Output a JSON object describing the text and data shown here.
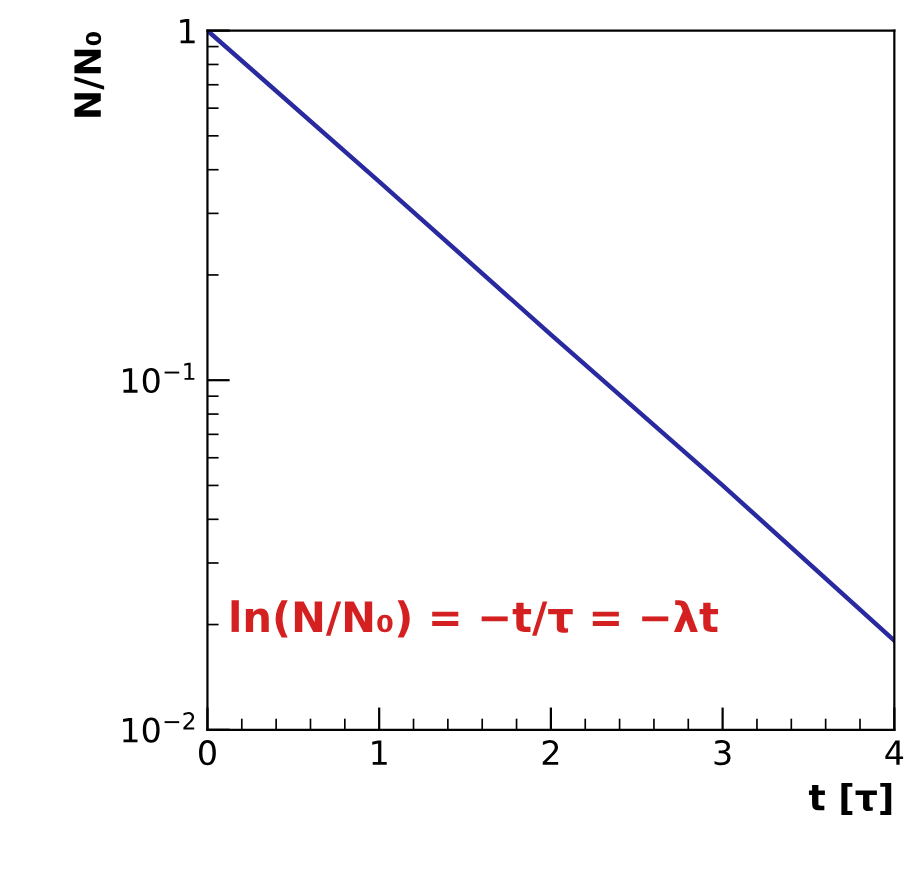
{
  "chart_data": {
    "type": "line",
    "xlabel": "t [τ]",
    "ylabel": "N/N₀",
    "x": [
      0,
      1,
      2,
      3,
      4
    ],
    "series": [
      {
        "color": "#2a2aa0",
        "values": [
          1,
          0.37,
          0.135,
          0.05,
          0.018
        ]
      }
    ],
    "log": "y",
    "xlim": [
      0,
      4
    ],
    "ylim": [
      0.01,
      1
    ],
    "xticks": [
      0,
      1,
      2,
      3,
      4
    ],
    "yticks": [
      {
        "value": 0.01,
        "label": "10$^{−2}$"
      },
      {
        "value": 0.1,
        "label": "10$^{−1}$"
      },
      1
    ],
    "grid": false,
    "legend": false,
    "marker": "none",
    "line_style": "solid",
    "annotations": [
      "ln(N/N₀) = −t/τ = −λt"
    ]
  }
}
